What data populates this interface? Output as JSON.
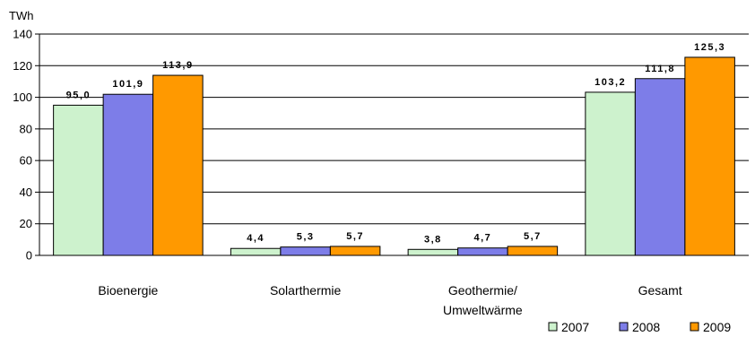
{
  "chart_data": {
    "type": "bar",
    "unit_label": "TWh",
    "categories": [
      [
        "Bioenergie"
      ],
      [
        "Solarthermie"
      ],
      [
        "Geothermie/",
        "Umweltwärme"
      ],
      [
        "Gesamt"
      ]
    ],
    "series": [
      {
        "name": "2007",
        "values": [
          95.0,
          4.4,
          3.8,
          103.2
        ],
        "labels": [
          "95,0",
          "4,4",
          "3,8",
          "103,2"
        ],
        "color": "#cdf2cd"
      },
      {
        "name": "2008",
        "values": [
          101.9,
          5.3,
          4.7,
          111.8
        ],
        "labels": [
          "101,9",
          "5,3",
          "4,7",
          "111,8"
        ],
        "color": "#7d7de8"
      },
      {
        "name": "2009",
        "values": [
          113.9,
          5.7,
          5.7,
          125.3
        ],
        "labels": [
          "113,9",
          "5,7",
          "5,7",
          "125,3"
        ],
        "color": "#ff9900"
      }
    ],
    "ylim": [
      0,
      140
    ],
    "yticks": [
      0,
      20,
      40,
      60,
      80,
      100,
      120,
      140
    ],
    "grid": true,
    "legend": "bottom-right",
    "title": "",
    "xlabel": "",
    "ylabel": ""
  }
}
